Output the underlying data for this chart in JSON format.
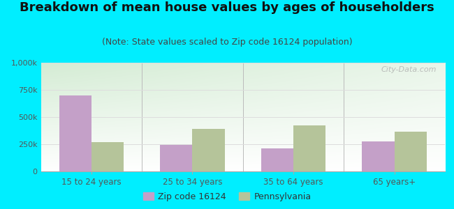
{
  "title": "Breakdown of mean house values by ages of householders",
  "subtitle": "(Note: State values scaled to Zip code 16124 population)",
  "categories": [
    "15 to 24 years",
    "25 to 34 years",
    "35 to 64 years",
    "65 years+"
  ],
  "zip_values": [
    700000,
    245000,
    210000,
    275000
  ],
  "state_values": [
    270000,
    390000,
    420000,
    365000
  ],
  "zip_color": "#c4a0c8",
  "state_color": "#b5c49a",
  "background_color": "#00eeff",
  "ylim": [
    0,
    1000000
  ],
  "yticks": [
    0,
    250000,
    500000,
    750000,
    1000000
  ],
  "ytick_labels": [
    "0",
    "250k",
    "500k",
    "750k",
    "1,000k"
  ],
  "legend_zip": "Zip code 16124",
  "legend_state": "Pennsylvania",
  "title_fontsize": 13,
  "subtitle_fontsize": 9,
  "watermark": "City-Data.com",
  "grid_color": "#dddddd",
  "tick_label_color": "#555555",
  "bar_width": 0.32
}
